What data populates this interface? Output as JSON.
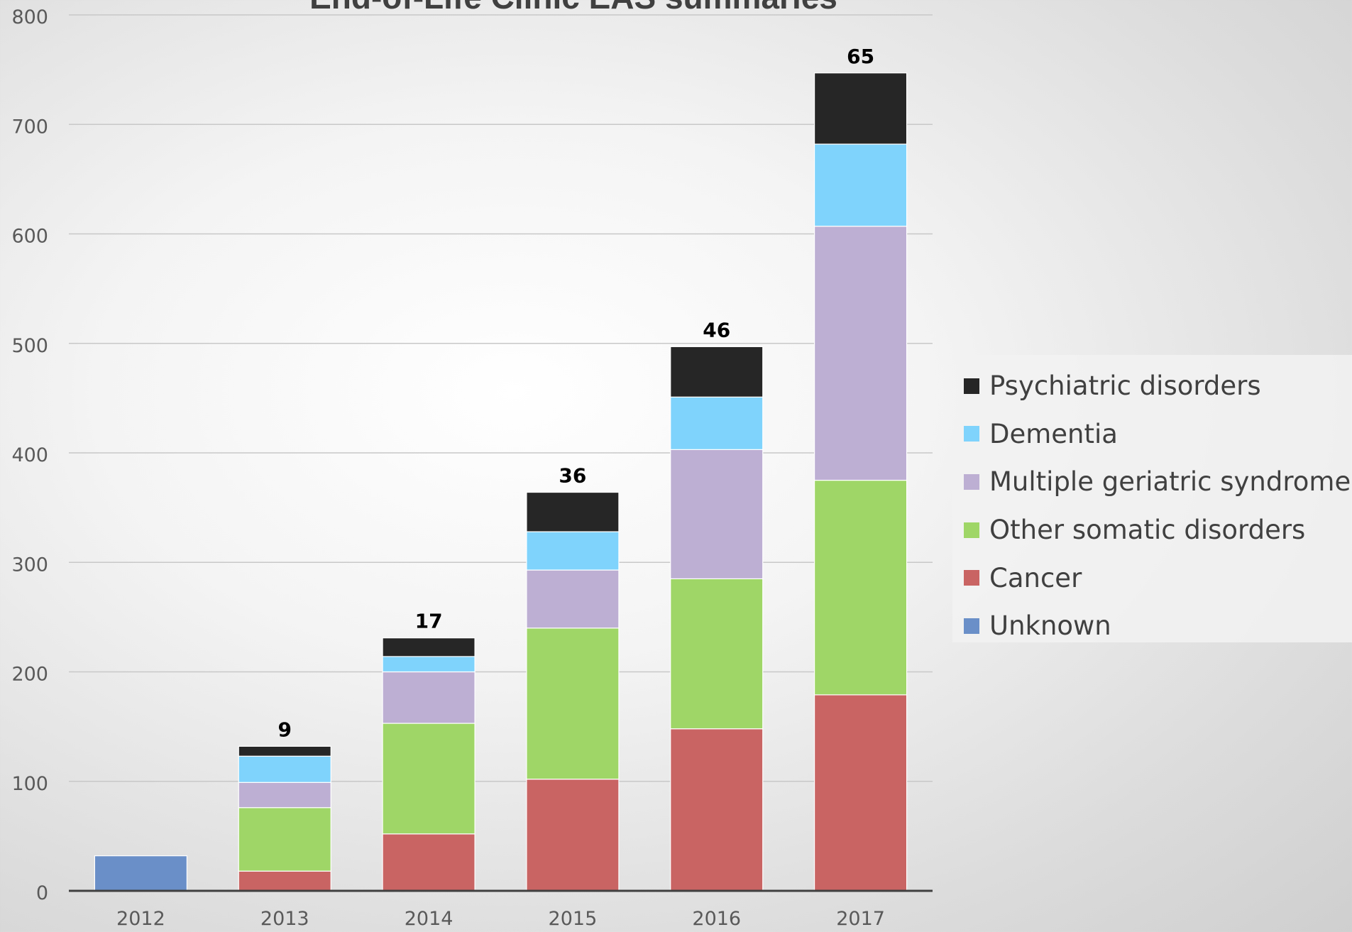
{
  "chart_data": {
    "type": "bar",
    "stacked": true,
    "title": "End-of-Life Clinic EAS summaries",
    "categories": [
      "2012",
      "2013",
      "2014",
      "2015",
      "2016",
      "2017"
    ],
    "ylim": [
      0,
      800
    ],
    "yticks": [
      0,
      100,
      200,
      300,
      400,
      500,
      600,
      700,
      800
    ],
    "grid": true,
    "legend_position": "right",
    "series": [
      {
        "name": "Unknown",
        "color": "#6a8fc8",
        "values": [
          32,
          0,
          0,
          0,
          0,
          0
        ]
      },
      {
        "name": "Cancer",
        "color": "#c96463",
        "values": [
          0,
          18,
          52,
          102,
          148,
          179
        ]
      },
      {
        "name": "Other somatic disorders",
        "color": "#9fd667",
        "values": [
          0,
          58,
          101,
          138,
          137,
          196
        ]
      },
      {
        "name": "Multiple geriatric syndromes",
        "color": "#bdafd3",
        "values": [
          0,
          23,
          47,
          53,
          118,
          232
        ]
      },
      {
        "name": "Dementia",
        "color": "#7fd3fc",
        "values": [
          0,
          24,
          14,
          35,
          48,
          75
        ]
      },
      {
        "name": "Psychiatric disorders",
        "color": "#262626",
        "values": [
          0,
          9,
          17,
          36,
          46,
          65
        ]
      }
    ],
    "top_labels": [
      "",
      "9",
      "17",
      "36",
      "46",
      "65"
    ]
  }
}
